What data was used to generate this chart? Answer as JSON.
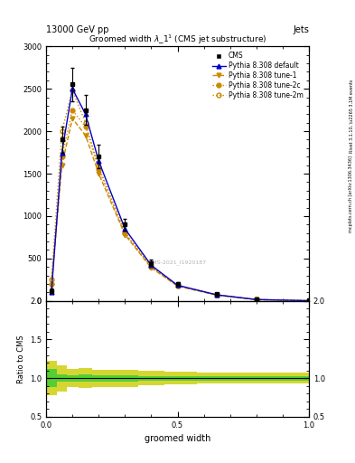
{
  "title": "13000 GeV pp",
  "title_right": "Jets",
  "plot_title": "Groomed width $\\lambda\\_1^1$ (CMS jet substructure)",
  "xlabel": "groomed width",
  "ylabel_ratio": "Ratio to CMS",
  "right_label_top": "Rivet 3.1.10, \\u2265 3.1M events",
  "right_label_bottom": "mcplots.cern.ch [arXiv:1306.3436]",
  "watermark": "CMS-2021_I1920187",
  "x_data": [
    0.02,
    0.06,
    0.1,
    0.15,
    0.2,
    0.3,
    0.4,
    0.5,
    0.65,
    0.8,
    1.0
  ],
  "cms_y": [
    120,
    1900,
    2550,
    2250,
    1700,
    900,
    450,
    200,
    80,
    20,
    5
  ],
  "cms_yerr": [
    30,
    150,
    200,
    180,
    140,
    70,
    35,
    18,
    8,
    4,
    1
  ],
  "pythia_default_y": [
    100,
    1750,
    2500,
    2200,
    1650,
    850,
    420,
    185,
    72,
    17,
    3
  ],
  "pythia_tune1_y": [
    180,
    1600,
    2150,
    1950,
    1500,
    780,
    390,
    175,
    68,
    15,
    3
  ],
  "pythia_tune2c_y": [
    200,
    1700,
    2250,
    2050,
    1550,
    800,
    400,
    178,
    69,
    16,
    3
  ],
  "pythia_tune2m_y": [
    250,
    2000,
    2480,
    2100,
    1580,
    810,
    405,
    182,
    70,
    16,
    3
  ],
  "bin_edges": [
    0.0,
    0.04,
    0.08,
    0.125,
    0.175,
    0.25,
    0.35,
    0.45,
    0.575,
    0.725,
    0.9,
    1.0
  ],
  "ratio_green_lo": [
    0.88,
    0.95,
    0.96,
    0.95,
    0.96,
    0.96,
    0.97,
    0.97,
    0.97,
    0.97,
    0.97
  ],
  "ratio_green_hi": [
    1.12,
    1.05,
    1.04,
    1.05,
    1.04,
    1.04,
    1.03,
    1.03,
    1.03,
    1.03,
    1.03
  ],
  "ratio_yellow_lo": [
    0.78,
    0.83,
    0.88,
    0.87,
    0.89,
    0.89,
    0.91,
    0.92,
    0.93,
    0.93,
    0.93
  ],
  "ratio_yellow_hi": [
    1.22,
    1.17,
    1.12,
    1.13,
    1.11,
    1.11,
    1.09,
    1.08,
    1.07,
    1.07,
    1.07
  ],
  "color_default": "#0000cc",
  "color_tune1": "#cc8800",
  "color_tune2c": "#cc8800",
  "color_tune2m": "#cc8800",
  "color_cms": "#000000",
  "color_green": "#33cc33",
  "color_yellow": "#cccc00",
  "ylim_main": [
    0,
    3000
  ],
  "yticks_main": [
    0,
    500,
    1000,
    1500,
    2000,
    2500,
    3000
  ],
  "ylim_ratio": [
    0.5,
    2.0
  ],
  "xlim": [
    0.0,
    1.0
  ]
}
